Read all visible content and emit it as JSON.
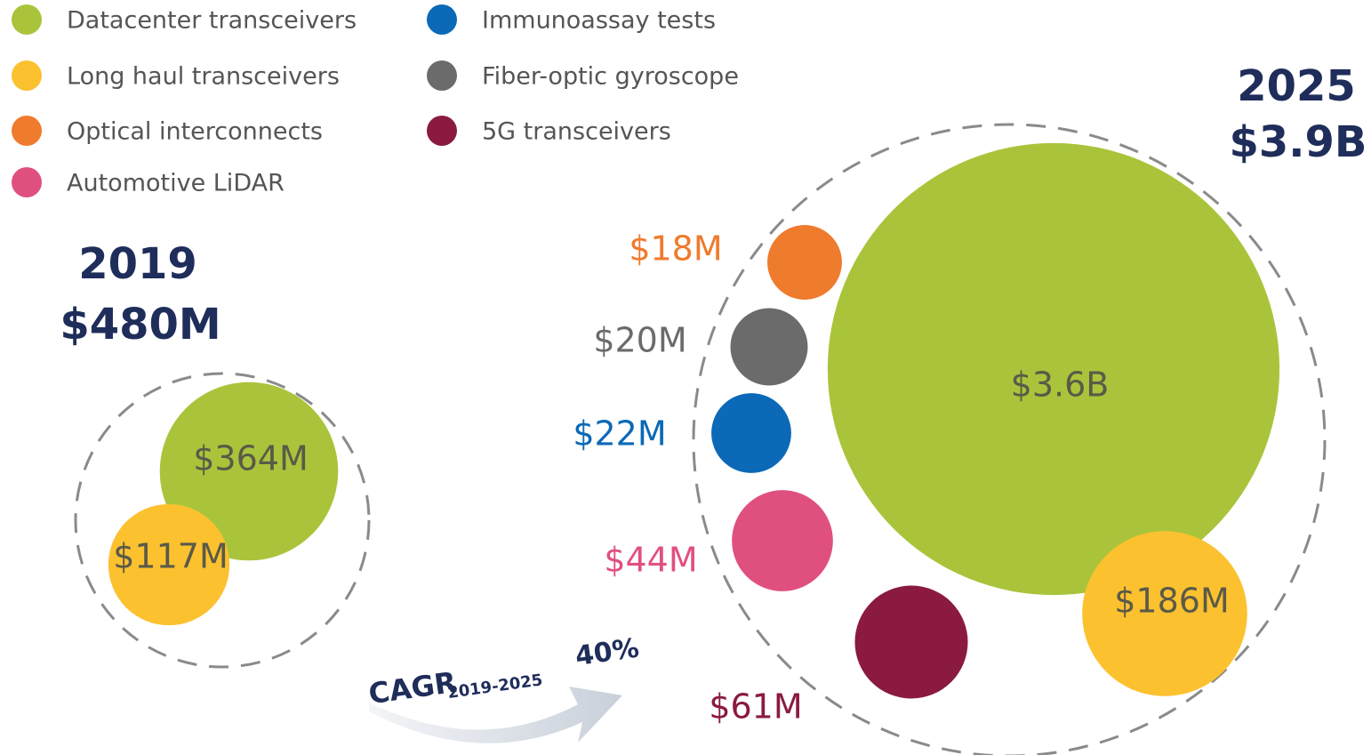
{
  "chart_data": {
    "type": "bubble",
    "categories": [
      "2019",
      "2025"
    ],
    "totals": [
      "$480M",
      "$3.9B"
    ],
    "series": [
      {
        "name": "Datacenter transceivers",
        "color": "#a9c43b",
        "values": [
          364,
          3600
        ],
        "value_labels": [
          "$364M",
          "$3.6B"
        ]
      },
      {
        "name": "Long haul transceivers",
        "color": "#fcc12f",
        "values": [
          117,
          186
        ],
        "value_labels": [
          "$117M",
          "$186M"
        ]
      },
      {
        "name": "Optical interconnects",
        "color": "#ef7b2d",
        "values": [
          null,
          18
        ],
        "value_labels": [
          null,
          "$18M"
        ]
      },
      {
        "name": "Automotive LiDAR",
        "color": "#e0507f",
        "values": [
          null,
          44
        ],
        "value_labels": [
          null,
          "$44M"
        ]
      },
      {
        "name": "Immunoassay tests",
        "color": "#0b69b7",
        "values": [
          null,
          22
        ],
        "value_labels": [
          null,
          "$22M"
        ]
      },
      {
        "name": "Fiber-optic gyroscope",
        "color": "#6b6b6b",
        "values": [
          null,
          20
        ],
        "value_labels": [
          null,
          "$20M"
        ]
      },
      {
        "name": "5G transceivers",
        "color": "#8a1a40",
        "values": [
          null,
          61
        ],
        "value_labels": [
          null,
          "$61M"
        ]
      }
    ],
    "cagr_label": "CAGR",
    "cagr_period": "2019-2025",
    "cagr_value": "40%"
  }
}
